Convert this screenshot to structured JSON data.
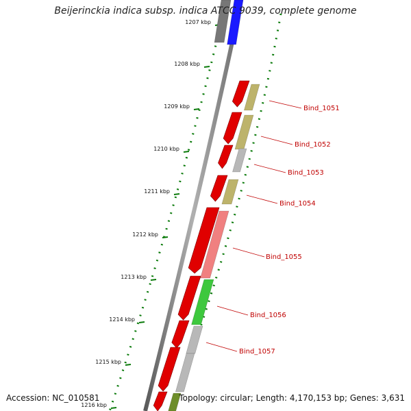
{
  "header": {
    "title": "Beijerinckia indica subsp. indica ATCC 9039, complete genome"
  },
  "footer": {
    "accession": "Accession: NC_010581",
    "summary": "Topology: circular; Length: 4,170,153 bp; Genes: 3,631"
  },
  "scale": {
    "unit": "kbp",
    "ticks": [
      "1207 kbp",
      "1208 kbp",
      "1209 kbp",
      "1210 kbp",
      "1211 kbp",
      "1212 kbp",
      "1213 kbp",
      "1214 kbp",
      "1215 kbp",
      "1216 kbp"
    ]
  },
  "genes": [
    {
      "name": "Bind_1051"
    },
    {
      "name": "Bind_1052"
    },
    {
      "name": "Bind_1053"
    },
    {
      "name": "Bind_1054"
    },
    {
      "name": "Bind_1055"
    },
    {
      "name": "Bind_1056"
    },
    {
      "name": "Bind_1057"
    }
  ],
  "colors": {
    "cds": "#e00000",
    "label": "#c00000",
    "backbone": "#888888",
    "tick": "#0a7a0a",
    "cog_khaki": "#bdb36b",
    "cog_grey": "#b8b8b8",
    "cog_pink": "#f08080",
    "cog_green": "#3ec83e",
    "cog_blue": "#1a1aff",
    "cog_darkgrey": "#777777",
    "cog_olive": "#6e8e2a"
  }
}
